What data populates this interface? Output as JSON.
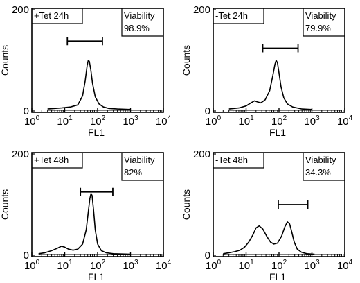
{
  "chart_data": [
    {
      "type": "line",
      "label": "+Tet 24h",
      "viability_label": "Viability",
      "viability_value": "98.9%",
      "xlabel": "FL1",
      "ylabel": "Counts",
      "x_scale": "log",
      "xlim": [
        1,
        10000
      ],
      "x_ticks": [
        1,
        10,
        100,
        1000,
        10000
      ],
      "x_tick_labels": [
        {
          "base": "10",
          "exp": "0"
        },
        {
          "base": "10",
          "exp": "1"
        },
        {
          "base": "10",
          "exp": "2"
        },
        {
          "base": "10",
          "exp": "3"
        },
        {
          "base": "10",
          "exp": "4"
        }
      ],
      "y_ticks": [
        0,
        200
      ],
      "y_tick_labels": [
        "0",
        "200"
      ],
      "ylim": [
        0,
        200
      ],
      "gate": {
        "from": 12,
        "to": 140,
        "y": 138
      },
      "series": [
        {
          "x": [
            3,
            8,
            15,
            25,
            35,
            42,
            48,
            52,
            56,
            62,
            70,
            85,
            110,
            150,
            220,
            400,
            1000
          ],
          "y": [
            4,
            6,
            8,
            12,
            30,
            60,
            90,
            100,
            98,
            82,
            55,
            28,
            14,
            8,
            5,
            4,
            3
          ]
        }
      ]
    },
    {
      "type": "line",
      "label": "-Tet 24h",
      "viability_label": "Viability",
      "viability_value": "79.9%",
      "xlabel": "FL1",
      "ylabel": "Counts",
      "x_scale": "log",
      "xlim": [
        1,
        10000
      ],
      "x_ticks": [
        1,
        10,
        100,
        1000,
        10000
      ],
      "x_tick_labels": [
        {
          "base": "10",
          "exp": "0"
        },
        {
          "base": "10",
          "exp": "1"
        },
        {
          "base": "10",
          "exp": "2"
        },
        {
          "base": "10",
          "exp": "3"
        },
        {
          "base": "10",
          "exp": "4"
        }
      ],
      "y_ticks": [
        0,
        200
      ],
      "y_tick_labels": [
        "0",
        "200"
      ],
      "ylim": [
        0,
        200
      ],
      "gate": {
        "from": 32,
        "to": 380,
        "y": 124
      },
      "series": [
        {
          "x": [
            3,
            6,
            10,
            14,
            18,
            22,
            28,
            38,
            52,
            65,
            75,
            82,
            90,
            100,
            115,
            140,
            180,
            260,
            500,
            1000
          ],
          "y": [
            4,
            6,
            10,
            16,
            20,
            18,
            16,
            22,
            40,
            70,
            92,
            100,
            95,
            75,
            48,
            26,
            14,
            8,
            4,
            3
          ]
        }
      ]
    },
    {
      "type": "line",
      "label": "+Tet 48h",
      "viability_label": "Viability",
      "viability_value": "82%",
      "xlabel": "FL1",
      "ylabel": "Counts",
      "x_scale": "log",
      "xlim": [
        1,
        10000
      ],
      "x_ticks": [
        1,
        10,
        100,
        1000,
        10000
      ],
      "x_tick_labels": [
        {
          "base": "10",
          "exp": "0"
        },
        {
          "base": "10",
          "exp": "1"
        },
        {
          "base": "10",
          "exp": "2"
        },
        {
          "base": "10",
          "exp": "3"
        },
        {
          "base": "10",
          "exp": "4"
        }
      ],
      "y_ticks": [
        0,
        200
      ],
      "y_tick_labels": [
        "0",
        "200"
      ],
      "ylim": [
        0,
        200
      ],
      "gate": {
        "from": 30,
        "to": 290,
        "y": 125
      },
      "series": [
        {
          "x": [
            1.6,
            2.5,
            4,
            6,
            8,
            10,
            13,
            18,
            25,
            35,
            45,
            52,
            58,
            63,
            68,
            75,
            85,
            100,
            130,
            180,
            300,
            1000
          ],
          "y": [
            3,
            5,
            9,
            14,
            18,
            16,
            12,
            10,
            12,
            22,
            50,
            85,
            112,
            122,
            118,
            90,
            50,
            22,
            9,
            5,
            3,
            2
          ]
        }
      ]
    },
    {
      "type": "line",
      "label": "-Tet 48h",
      "viability_label": "Viability",
      "viability_value": "34.3%",
      "xlabel": "FL1",
      "ylabel": "Counts",
      "x_scale": "log",
      "xlim": [
        1,
        10000
      ],
      "x_ticks": [
        1,
        10,
        100,
        1000,
        10000
      ],
      "x_tick_labels": [
        {
          "base": "10",
          "exp": "0"
        },
        {
          "base": "10",
          "exp": "1"
        },
        {
          "base": "10",
          "exp": "2"
        },
        {
          "base": "10",
          "exp": "3"
        },
        {
          "base": "10",
          "exp": "4"
        }
      ],
      "y_ticks": [
        0,
        200
      ],
      "y_tick_labels": [
        "0",
        "200"
      ],
      "ylim": [
        0,
        200
      ],
      "gate": {
        "from": 95,
        "to": 750,
        "y": 100
      },
      "series": [
        {
          "x": [
            2,
            3,
            4.5,
            6.5,
            9,
            12,
            16,
            20,
            25,
            32,
            42,
            55,
            70,
            90,
            120,
            150,
            180,
            210,
            240,
            290,
            360,
            480,
            700,
            1200
          ],
          "y": [
            3,
            5,
            7,
            10,
            16,
            26,
            40,
            54,
            58,
            52,
            38,
            26,
            22,
            24,
            38,
            56,
            66,
            62,
            48,
            26,
            12,
            6,
            3,
            2
          ]
        }
      ]
    }
  ]
}
